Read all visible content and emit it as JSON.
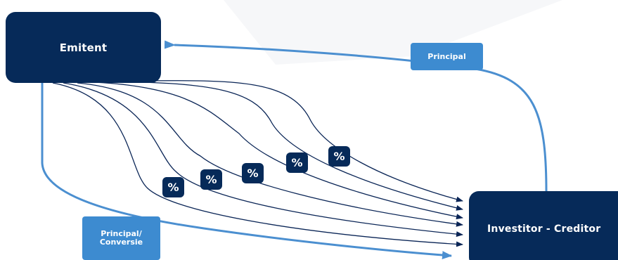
{
  "nodes": {
    "emitent": "Emitent",
    "investitor": "Investitor - Creditor"
  },
  "labels": {
    "principal": "Principal",
    "principal_conversie": "Principal/\nConversie"
  },
  "interest": {
    "symbol": "%",
    "count": 5
  },
  "colors": {
    "node_fill": "#062a59",
    "label_fill": "#3d8bd0",
    "principal_flow": "#4b8fd0",
    "interest_flow": "#0a2556",
    "background_shape": "#f6f7f9"
  }
}
